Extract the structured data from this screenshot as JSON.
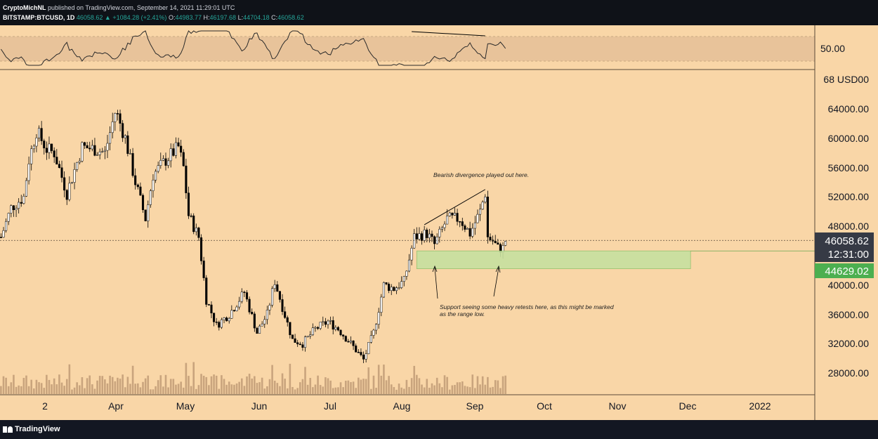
{
  "header": {
    "author": "CryptoMichNL",
    "published": "published on TradingView.com, September 14, 2021 11:29:01 UTC",
    "symbol": "BITSTAMP:BTCUSD, 1D",
    "last": "46058.62",
    "change": "+1084.28 (+2.41%)",
    "o_label": "O:",
    "o": "44983.77",
    "h_label": "H:",
    "h": "46197.68",
    "l_label": "L:",
    "l": "44704.18",
    "c_label": "C:",
    "c": "46058.62"
  },
  "footer": {
    "brand": "TradingView"
  },
  "colors": {
    "background": "#f9d6a7",
    "up": "#ffffff",
    "down": "#000000",
    "support_zone": "#c7e0a0",
    "price_label_bg": "#363a45",
    "support_label_bg": "#4caf50"
  },
  "chart_data": {
    "type": "candlestick",
    "symbol": "BITSTAMP:BTCUSD",
    "interval": "1D",
    "y_axis": {
      "unit": "USD",
      "ticks": [
        "68 USD00",
        "64000.00",
        "60000.00",
        "56000.00",
        "52000.00",
        "48000.00",
        "40000.00",
        "36000.00",
        "32000.00",
        "28000.00"
      ],
      "ylim": [
        25000,
        69000
      ]
    },
    "x_axis": {
      "ticks": [
        "2",
        "Apr",
        "May",
        "Jun",
        "Jul",
        "Aug",
        "Sep",
        "Oct",
        "Nov",
        "Dec",
        "2022"
      ]
    },
    "price_path": [
      {
        "date": "2021-02-27",
        "close": 46500
      },
      {
        "date": "2021-03-03",
        "close": 50500
      },
      {
        "date": "2021-03-08",
        "close": 52000
      },
      {
        "date": "2021-03-10",
        "close": 57000
      },
      {
        "date": "2021-03-13",
        "close": 61000
      },
      {
        "date": "2021-03-17",
        "close": 58500
      },
      {
        "date": "2021-03-20",
        "close": 58000
      },
      {
        "date": "2021-03-25",
        "close": 52500
      },
      {
        "date": "2021-03-31",
        "close": 58800
      },
      {
        "date": "2021-04-05",
        "close": 58500
      },
      {
        "date": "2021-04-09",
        "close": 58000
      },
      {
        "date": "2021-04-13",
        "close": 63500
      },
      {
        "date": "2021-04-14",
        "close": 63000
      },
      {
        "date": "2021-04-17",
        "close": 60000
      },
      {
        "date": "2021-04-21",
        "close": 54000
      },
      {
        "date": "2021-04-25",
        "close": 49000
      },
      {
        "date": "2021-04-28",
        "close": 55000
      },
      {
        "date": "2021-05-03",
        "close": 57000
      },
      {
        "date": "2021-05-08",
        "close": 58800
      },
      {
        "date": "2021-05-10",
        "close": 56000
      },
      {
        "date": "2021-05-12",
        "close": 49500
      },
      {
        "date": "2021-05-16",
        "close": 46500
      },
      {
        "date": "2021-05-19",
        "close": 38000
      },
      {
        "date": "2021-05-23",
        "close": 34500
      },
      {
        "date": "2021-05-28",
        "close": 36000
      },
      {
        "date": "2021-06-03",
        "close": 39000
      },
      {
        "date": "2021-06-08",
        "close": 33500
      },
      {
        "date": "2021-06-12",
        "close": 36000
      },
      {
        "date": "2021-06-15",
        "close": 40500
      },
      {
        "date": "2021-06-18",
        "close": 37000
      },
      {
        "date": "2021-06-22",
        "close": 32500
      },
      {
        "date": "2021-06-26",
        "close": 32000
      },
      {
        "date": "2021-07-01",
        "close": 34000
      },
      {
        "date": "2021-07-06",
        "close": 35000
      },
      {
        "date": "2021-07-10",
        "close": 34000
      },
      {
        "date": "2021-07-15",
        "close": 32000
      },
      {
        "date": "2021-07-20",
        "close": 29800
      },
      {
        "date": "2021-07-24",
        "close": 33500
      },
      {
        "date": "2021-07-28",
        "close": 40000
      },
      {
        "date": "2021-08-01",
        "close": 39500
      },
      {
        "date": "2021-08-05",
        "close": 40500
      },
      {
        "date": "2021-08-09",
        "close": 46500
      },
      {
        "date": "2021-08-14",
        "close": 47000
      },
      {
        "date": "2021-08-17",
        "close": 45500
      },
      {
        "date": "2021-08-22",
        "close": 49000
      },
      {
        "date": "2021-08-27",
        "close": 49000
      },
      {
        "date": "2021-08-31",
        "close": 47000
      },
      {
        "date": "2021-09-04",
        "close": 50000
      },
      {
        "date": "2021-09-06",
        "close": 52500
      },
      {
        "date": "2021-09-07",
        "close": 46500
      },
      {
        "date": "2021-09-09",
        "close": 46000
      },
      {
        "date": "2021-09-11",
        "close": 45000
      },
      {
        "date": "2021-09-13",
        "close": 45000
      },
      {
        "date": "2021-09-14",
        "close": 46058
      }
    ],
    "price_labels": {
      "last_price": "46058.62",
      "countdown": "12:31:00",
      "support": "44629.02"
    },
    "support_zone": {
      "from": 42200,
      "to": 44629
    },
    "divergence_line": [
      {
        "date": "2021-08-13",
        "price": 48200
      },
      {
        "date": "2021-09-06",
        "price": 53000
      }
    ],
    "annotations": [
      {
        "text": "Bearish divergence played out here."
      },
      {
        "lines": [
          "Support seeing some heavy retests here, as this might be marked",
          "as the range low."
        ]
      }
    ],
    "rsi": {
      "label": "50.00",
      "level": 50
    }
  }
}
